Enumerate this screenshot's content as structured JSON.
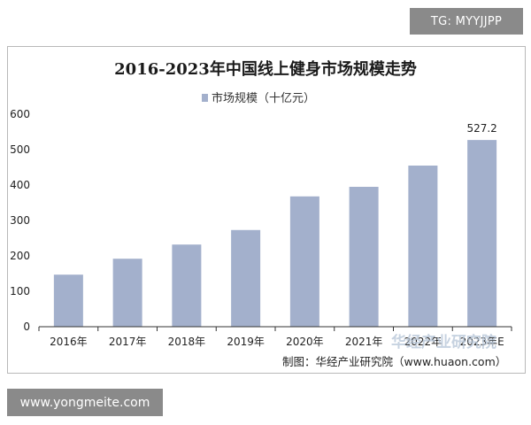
{
  "top_tag": "TG: MYYJJPP",
  "bottom_badge": "www.yongmeite.com",
  "watermark": "华经产业研究院",
  "source": "制图：华经产业研究院（www.huaon.com）",
  "colors": {
    "bar": "#a3b0cc",
    "axis": "#333333"
  },
  "chart_data": {
    "type": "bar",
    "title": "2016-2023年中国线上健身市场规模走势",
    "legend": "市场规模（十亿元）",
    "legend_position": "top-center",
    "categories": [
      "2016年",
      "2017年",
      "2018年",
      "2019年",
      "2020年",
      "2021年",
      "2022年",
      "2023年E"
    ],
    "values": [
      147,
      192,
      232,
      273,
      368,
      395,
      455,
      527.2
    ],
    "data_labels": [
      {
        "index": 7,
        "text": "527.2"
      }
    ],
    "yticks": [
      "0",
      "100",
      "200",
      "300",
      "400",
      "500",
      "600"
    ],
    "ylim": [
      0,
      600
    ],
    "grid": false
  }
}
